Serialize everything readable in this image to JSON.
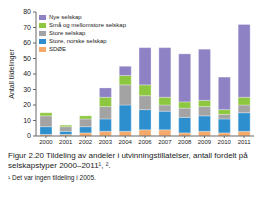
{
  "chart_data": {
    "type": "bar",
    "stacked": true,
    "title": "Figur 2.20  Tildeling av andeler i utvinningstillatelser, antall fordelt på selskapstyper 2000–2011¹, ².",
    "annotation": "¹ Det var ingen tildeling i 2005.",
    "ylabel": "Antall tildelinger",
    "categories": [
      "2000",
      "2001",
      "2002",
      "2003",
      "2004",
      "2006",
      "2007",
      "2008",
      "2009",
      "2010",
      "2011"
    ],
    "series": [
      {
        "name": "SDØE",
        "color": "#f5a96b",
        "values": [
          1,
          1,
          2,
          3,
          3,
          4,
          4,
          2,
          3,
          2,
          3
        ]
      },
      {
        "name": "Store, norske selskap",
        "color": "#2e8fcf",
        "values": [
          5,
          2,
          4,
          8,
          17,
          13,
          12,
          10,
          10,
          9,
          12
        ]
      },
      {
        "name": "Store selskap",
        "color": "#a3a3a3",
        "values": [
          7,
          3,
          5,
          8,
          13,
          9,
          4,
          6,
          6,
          3,
          5
        ]
      },
      {
        "name": "Små og mellomstore selskap",
        "color": "#8dc63f",
        "values": [
          2,
          1,
          2,
          6,
          6,
          7,
          5,
          4,
          4,
          3,
          5
        ]
      },
      {
        "name": "Nye selskap",
        "color": "#8e82c4",
        "values": [
          0,
          0,
          0,
          6,
          6,
          24,
          32,
          31,
          33,
          21,
          47
        ]
      }
    ],
    "ylim": [
      0,
      80
    ],
    "yticks": [
      0,
      10,
      20,
      30,
      40,
      50,
      60,
      70,
      80
    ],
    "grid": false,
    "legend": "upper left"
  }
}
